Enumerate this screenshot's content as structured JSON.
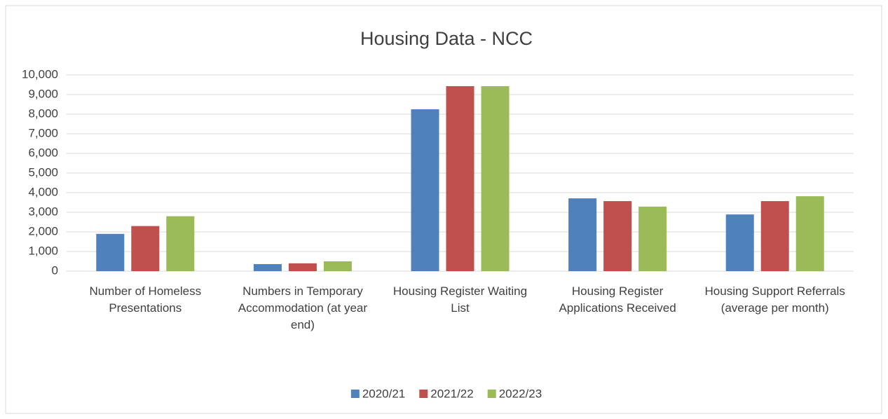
{
  "chart_data": {
    "type": "bar",
    "title": "Housing Data - NCC",
    "categories": [
      "Number of Homeless Presentations",
      "Numbers in Temporary Accommodation (at year end)",
      "Housing Register Waiting List",
      "Housing Register Applications Received",
      "Housing Support Referrals (average per month)"
    ],
    "series": [
      {
        "name": "2020/21",
        "color": "#4f81bd",
        "values": [
          1900,
          360,
          8250,
          3710,
          2890
        ]
      },
      {
        "name": "2021/22",
        "color": "#c0504d",
        "values": [
          2300,
          400,
          9430,
          3570,
          3570
        ]
      },
      {
        "name": "2022/23",
        "color": "#9bbb59",
        "values": [
          2800,
          500,
          9430,
          3290,
          3820
        ]
      }
    ],
    "ylim": [
      0,
      10000
    ],
    "yticks": [
      0,
      {
        "value": 1000,
        "label": "1,000"
      },
      {
        "value": 2000,
        "label": "2,000"
      },
      {
        "value": 3000,
        "label": "3,000"
      },
      {
        "value": 4000,
        "label": "4,000"
      },
      {
        "value": 5000,
        "label": "5,000"
      },
      {
        "value": 6000,
        "label": "6,000"
      },
      {
        "value": 7000,
        "label": "7,000"
      },
      {
        "value": 8000,
        "label": "8,000"
      },
      {
        "value": 9000,
        "label": "9,000"
      },
      {
        "value": 10000,
        "label": "10,000"
      }
    ],
    "grid": true,
    "legend": "bottom"
  }
}
